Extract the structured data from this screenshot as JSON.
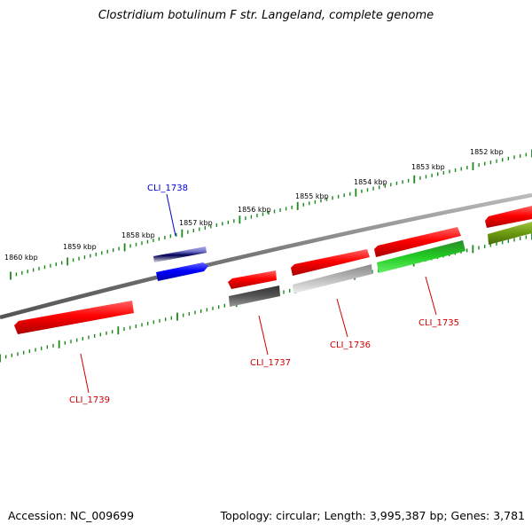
{
  "title": "Clostridium botulinum F str. Langeland, complete genome",
  "footer": {
    "accession": "Accession: NC_009699",
    "summary": "Topology: circular; Length: 3,995,387 bp; Genes: 3,781"
  },
  "ticks": [
    {
      "label": "1852 kbp"
    },
    {
      "label": "1853 kbp"
    },
    {
      "label": "1854 kbp"
    },
    {
      "label": "1855 kbp"
    },
    {
      "label": "1856 kbp"
    },
    {
      "label": "1857 kbp"
    },
    {
      "label": "1858 kbp"
    },
    {
      "label": "1859 kbp"
    },
    {
      "label": "1860 kbp"
    }
  ],
  "genes": [
    {
      "id": "CLI_1739",
      "label": "CLI_1739",
      "strand": "reverse",
      "color": "#ff0000",
      "labelColor": "#cc0000"
    },
    {
      "id": "CLI_1738",
      "label": "CLI_1738",
      "strand": "forward",
      "color": "#0000ff",
      "labelColor": "#0000cc"
    },
    {
      "id": "CLI_1737",
      "label": "CLI_1737",
      "strand": "reverse",
      "color": "#ff0000",
      "labelColor": "#cc0000"
    },
    {
      "id": "CLI_1736",
      "label": "CLI_1736",
      "strand": "forward",
      "color": "#ff0000",
      "labelColor": "#cc0000"
    },
    {
      "id": "CLI_1735",
      "label": "CLI_1735",
      "strand": "forward",
      "color": "#ff0000",
      "labelColor": "#cc0000"
    }
  ],
  "colors": {
    "backbone": "#808080",
    "tickMarks": "#1a8a1a",
    "cdsRed": "#ff0000",
    "cdsBlue": "#0000ff",
    "cdsGreen": "#22cc22",
    "cdsOlive": "#6a9a10",
    "cdsGray": "#aaaaaa",
    "cdsDarkGray": "#555555",
    "cdsLavender": "#8888dd"
  }
}
